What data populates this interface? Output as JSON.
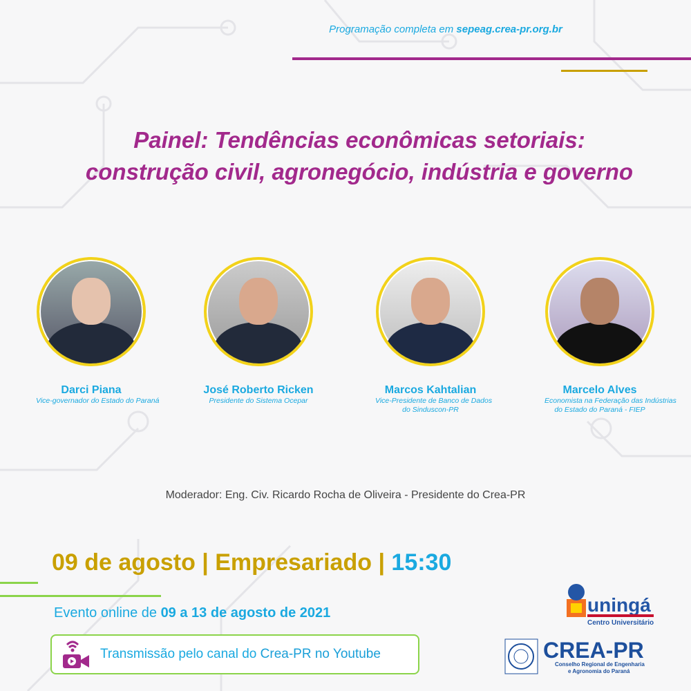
{
  "header": {
    "program_prefix": "Programação completa em ",
    "program_site": "sepeag.crea-pr.org.br"
  },
  "title": {
    "line1": "Painel: Tendências econômicas setoriais:",
    "line2": "construção civil, agronegócio, indústria e governo"
  },
  "speakers": [
    {
      "name": "Darci Piana",
      "role1": "Vice-governador do Estado do Paraná",
      "role2": ""
    },
    {
      "name": "José Roberto Ricken",
      "role1": "Presidente do Sistema Ocepar",
      "role2": ""
    },
    {
      "name": "Marcos Kahtalian",
      "role1": "Vice-Presidente de Banco de Dados",
      "role2": "do Sinduscon-PR"
    },
    {
      "name": "Marcelo Alves",
      "role1": "Economista na Federação das Indústrias",
      "role2": "do Estado do Paraná - FIEP"
    }
  ],
  "moderator": "Moderador: Eng. Civ. Ricardo Rocha de Oliveira - Presidente do Crea-PR",
  "schedule": {
    "date": "09 de agosto | Empresariado | ",
    "time": "15:30"
  },
  "event": {
    "prefix": "Evento online de ",
    "dates": "09 a 13 de agosto de 2021"
  },
  "stream": {
    "prefix": "Transmissão pelo canal do ",
    "channel": "Crea-PR no Youtube",
    "icon": "video-camera-wifi-icon"
  },
  "logos": {
    "uninga": "uningá",
    "uninga_sub": "Centro Universitário",
    "crea": "CREA-PR",
    "crea_sub1": "Conselho Regional de Engenharia",
    "crea_sub2": "e Agronomia do Paraná"
  },
  "colors": {
    "purple": "#a2298c",
    "gold": "#c9a000",
    "cyan": "#1aa9e0",
    "green": "#8bd44a",
    "ring": "#f2d21a"
  }
}
